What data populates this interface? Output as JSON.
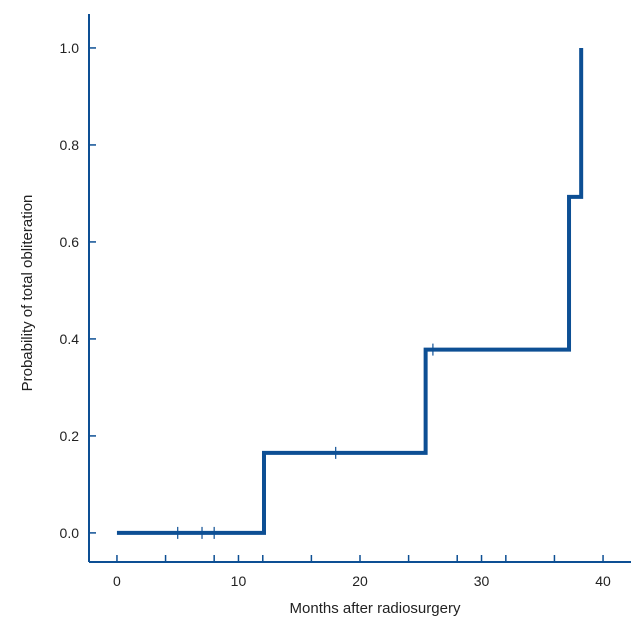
{
  "chart_data": {
    "type": "line",
    "subtype": "step (Kaplan-Meier cumulative probability)",
    "title": "",
    "xlabel": "Months after radiosurgery",
    "ylabel": "Probability of total obliteration",
    "xlim": [
      -2.3,
      42.3
    ],
    "ylim": [
      -0.06,
      1.07
    ],
    "xticks": [
      0,
      10,
      20,
      30,
      40
    ],
    "xtick_labels": [
      "0",
      "10",
      "20",
      "30",
      "40"
    ],
    "xminor_ticks": [
      4,
      8,
      12,
      16,
      24,
      28,
      32,
      36
    ],
    "yticks": [
      0.0,
      0.2,
      0.4,
      0.6,
      0.8,
      1.0
    ],
    "ytick_labels": [
      "0.0",
      "0.2",
      "0.4",
      "0.6",
      "0.8",
      "1.0"
    ],
    "grid": false,
    "legend": "none",
    "series": [
      {
        "color": "#0d4f94",
        "steps": [
          {
            "x": 0,
            "y": 0.0
          },
          {
            "x": 12.1,
            "y": 0.165
          },
          {
            "x": 25.4,
            "y": 0.378
          },
          {
            "x": 37.2,
            "y": 0.693
          },
          {
            "x": 38.2,
            "y": 1.0
          }
        ],
        "censored": [
          {
            "x": 5.0,
            "y": 0.0
          },
          {
            "x": 7.0,
            "y": 0.0
          },
          {
            "x": 8.0,
            "y": 0.0
          },
          {
            "x": 18.0,
            "y": 0.165
          },
          {
            "x": 26.0,
            "y": 0.378
          }
        ]
      }
    ]
  }
}
